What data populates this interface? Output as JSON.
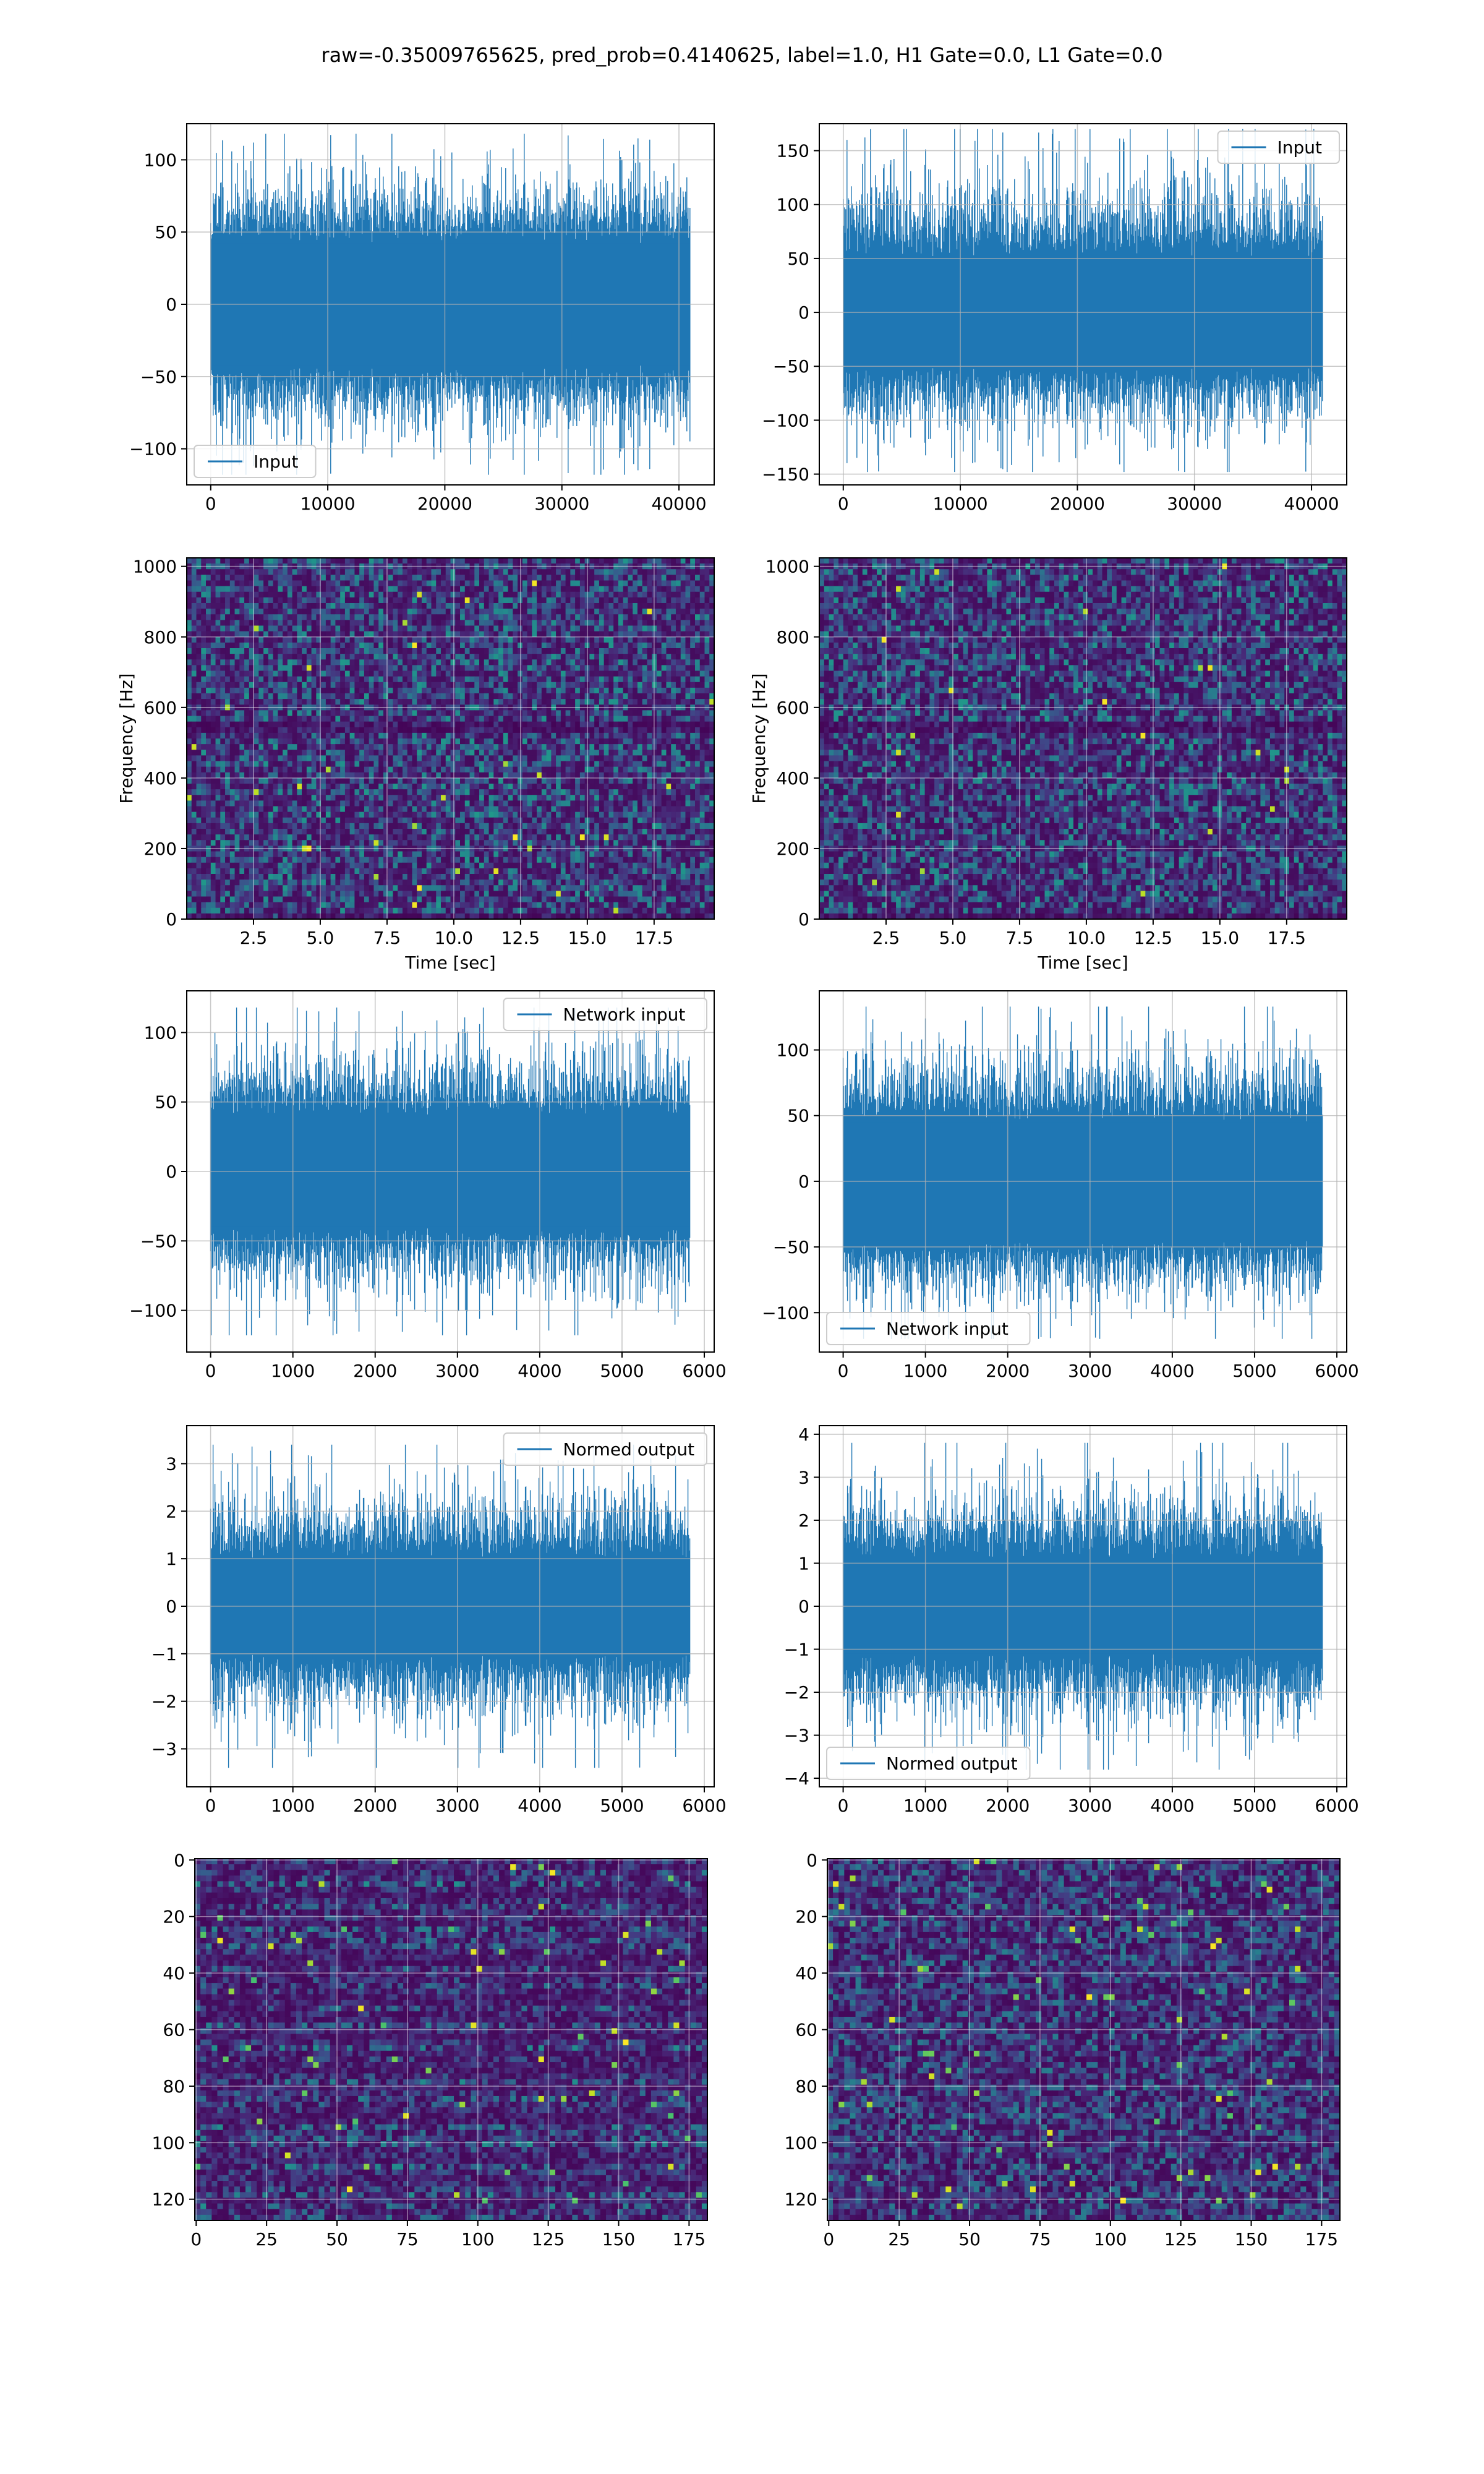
{
  "figure": {
    "title": "raw=-0.35009765625, pred_prob=0.4140625, label=1.0, H1 Gate=0.0, L1 Gate=0.0"
  },
  "colors": {
    "line": "#1f77b4",
    "grid": "#b0b0b0",
    "viridis": [
      "#440154",
      "#482475",
      "#414487",
      "#355f8d",
      "#2a788e",
      "#21918c",
      "#22a884",
      "#44bf70",
      "#7ad151",
      "#bddf26",
      "#fde725"
    ]
  },
  "chart_data": [
    {
      "id": "ts-left-input",
      "type": "line",
      "xlim": [
        -2048,
        43008
      ],
      "ylim": [
        -125,
        125
      ],
      "xticks": [
        0,
        10000,
        20000,
        30000,
        40000
      ],
      "yticks": [
        -100,
        -50,
        0,
        50,
        100
      ],
      "ytick_labels": [
        "−100",
        "−50",
        "0",
        "50",
        "100"
      ],
      "legend": {
        "label": "Input",
        "position": "lower-left"
      },
      "grid": true,
      "series": [
        {
          "name": "Input",
          "x_range": [
            0,
            40960
          ],
          "core_band": [
            -42,
            42
          ],
          "peak_band": [
            -118,
            118
          ]
        }
      ]
    },
    {
      "id": "ts-right-input",
      "type": "line",
      "xlim": [
        -2048,
        43008
      ],
      "ylim": [
        -160,
        175
      ],
      "xticks": [
        0,
        10000,
        20000,
        30000,
        40000
      ],
      "yticks": [
        -150,
        -100,
        -50,
        0,
        50,
        100,
        150
      ],
      "ytick_labels": [
        "−150",
        "−100",
        "−50",
        "0",
        "50",
        "100",
        "150"
      ],
      "legend": {
        "label": "Input",
        "position": "upper-right"
      },
      "grid": true,
      "series": [
        {
          "name": "Input",
          "x_range": [
            0,
            40960
          ],
          "core_band": [
            -50,
            50
          ],
          "peak_band": [
            -148,
            170
          ]
        }
      ]
    },
    {
      "id": "spec-left",
      "type": "heatmap",
      "xlim": [
        0,
        19.75
      ],
      "ylim": [
        0,
        1024
      ],
      "xticks": [
        2.5,
        5.0,
        7.5,
        10.0,
        12.5,
        15.0,
        17.5
      ],
      "yticks": [
        0,
        200,
        400,
        600,
        800,
        1000
      ],
      "xtick_labels": [
        "2.5",
        "5.0",
        "7.5",
        "10.0",
        "12.5",
        "15.0",
        "17.5"
      ],
      "xlabel": "Time [sec]",
      "ylabel": "Frequency [Hz]",
      "grid": true,
      "cmap": "viridis"
    },
    {
      "id": "spec-right",
      "type": "heatmap",
      "xlim": [
        0,
        19.75
      ],
      "ylim": [
        0,
        1024
      ],
      "xticks": [
        2.5,
        5.0,
        7.5,
        10.0,
        12.5,
        15.0,
        17.5
      ],
      "yticks": [
        0,
        200,
        400,
        600,
        800,
        1000
      ],
      "xtick_labels": [
        "2.5",
        "5.0",
        "7.5",
        "10.0",
        "12.5",
        "15.0",
        "17.5"
      ],
      "xlabel": "Time [sec]",
      "ylabel": "Frequency [Hz]",
      "grid": true,
      "cmap": "viridis"
    },
    {
      "id": "ts-left-network",
      "type": "line",
      "xlim": [
        -290,
        6120
      ],
      "ylim": [
        -130,
        130
      ],
      "xticks": [
        0,
        1000,
        2000,
        3000,
        4000,
        5000,
        6000
      ],
      "yticks": [
        -100,
        -50,
        0,
        50,
        100
      ],
      "ytick_labels": [
        "−100",
        "−50",
        "0",
        "50",
        "100"
      ],
      "legend": {
        "label": "Network input",
        "position": "upper-right"
      },
      "grid": true,
      "series": [
        {
          "name": "Network input",
          "x_range": [
            0,
            5824
          ],
          "core_band": [
            -40,
            40
          ],
          "peak_band": [
            -118,
            118
          ]
        }
      ]
    },
    {
      "id": "ts-right-network",
      "type": "line",
      "xlim": [
        -290,
        6120
      ],
      "ylim": [
        -130,
        145
      ],
      "xticks": [
        0,
        1000,
        2000,
        3000,
        4000,
        5000,
        6000
      ],
      "yticks": [
        -100,
        -50,
        0,
        50,
        100
      ],
      "ytick_labels": [
        "−100",
        "−50",
        "0",
        "50",
        "100"
      ],
      "legend": {
        "label": "Network input",
        "position": "lower-left"
      },
      "grid": true,
      "series": [
        {
          "name": "Network input",
          "x_range": [
            0,
            5824
          ],
          "core_band": [
            -45,
            45
          ],
          "peak_band": [
            -120,
            133
          ]
        }
      ]
    },
    {
      "id": "ts-left-normed",
      "type": "line",
      "xlim": [
        -290,
        6120
      ],
      "ylim": [
        -3.8,
        3.8
      ],
      "xticks": [
        0,
        1000,
        2000,
        3000,
        4000,
        5000,
        6000
      ],
      "yticks": [
        -3,
        -2,
        -1,
        0,
        1,
        2,
        3
      ],
      "ytick_labels": [
        "−3",
        "−2",
        "−1",
        "0",
        "1",
        "2",
        "3"
      ],
      "legend": {
        "label": "Normed output",
        "position": "upper-right"
      },
      "grid": true,
      "series": [
        {
          "name": "Normed output",
          "x_range": [
            0,
            5824
          ],
          "core_band": [
            -1.0,
            1.0
          ],
          "peak_band": [
            -3.4,
            3.4
          ]
        }
      ]
    },
    {
      "id": "ts-right-normed",
      "type": "line",
      "xlim": [
        -290,
        6120
      ],
      "ylim": [
        -4.2,
        4.2
      ],
      "xticks": [
        0,
        1000,
        2000,
        3000,
        4000,
        5000,
        6000
      ],
      "yticks": [
        -4,
        -3,
        -2,
        -1,
        0,
        1,
        2,
        3,
        4
      ],
      "ytick_labels": [
        "−4",
        "−3",
        "−2",
        "−1",
        "0",
        "1",
        "2",
        "3",
        "4"
      ],
      "legend": {
        "label": "Normed output",
        "position": "lower-left"
      },
      "grid": true,
      "series": [
        {
          "name": "Normed output",
          "x_range": [
            0,
            5824
          ],
          "core_band": [
            -1.1,
            1.1
          ],
          "peak_band": [
            -3.8,
            3.8
          ]
        }
      ]
    },
    {
      "id": "img-left",
      "type": "heatmap",
      "xlim": [
        -0.5,
        181.5
      ],
      "ylim": [
        127.5,
        -0.5
      ],
      "xticks": [
        0,
        25,
        50,
        75,
        100,
        125,
        150,
        175
      ],
      "yticks": [
        0,
        20,
        40,
        60,
        80,
        100,
        120
      ],
      "grid": true,
      "cmap": "viridis",
      "rows": 128,
      "cols": 182,
      "row_striped": true
    },
    {
      "id": "img-right",
      "type": "heatmap",
      "xlim": [
        -0.5,
        181.5
      ],
      "ylim": [
        127.5,
        -0.5
      ],
      "xticks": [
        0,
        25,
        50,
        75,
        100,
        125,
        150,
        175
      ],
      "yticks": [
        0,
        20,
        40,
        60,
        80,
        100,
        120
      ],
      "grid": true,
      "cmap": "viridis",
      "rows": 128,
      "cols": 182,
      "row_striped": false
    }
  ]
}
